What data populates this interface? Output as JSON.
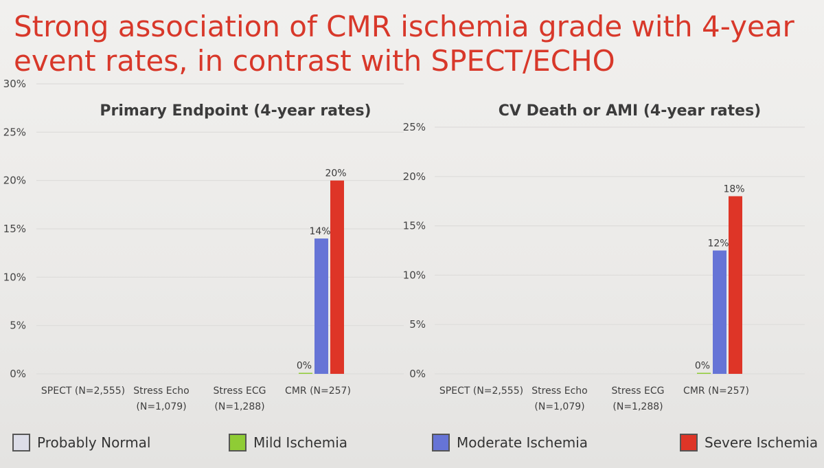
{
  "title": {
    "line1": "Strong association of CMR ischemia grade with 4-year",
    "line2": "event rates, in contrast with SPECT/ECHO"
  },
  "colors": {
    "title": "#d8382a",
    "probably_normal": "#dcdde8",
    "mild": "#8fcc35",
    "moderate": "#6674d6",
    "severe": "#de3527"
  },
  "legend": [
    {
      "key": "probably_normal",
      "label": "Probably Normal"
    },
    {
      "key": "mild",
      "label": "Mild Ischemia"
    },
    {
      "key": "moderate",
      "label": "Moderate Ischemia"
    },
    {
      "key": "severe",
      "label": "Severe Ischemia"
    }
  ],
  "chart_data": [
    {
      "type": "bar",
      "title": "Primary Endpoint (4-year rates)",
      "ylim": [
        0,
        30
      ],
      "yticks": [
        "0%",
        "5%",
        "10%",
        "15%",
        "20%",
        "25%",
        "30%"
      ],
      "categories": [
        [
          "SPECT (N=2,555)"
        ],
        [
          "Stress Echo",
          "(N=1,079)"
        ],
        [
          "Stress ECG",
          "(N=1,288)"
        ],
        [
          "CMR (N=257)"
        ]
      ],
      "series": [
        {
          "name": "Mild Ischemia",
          "key": "mild",
          "values": [
            null,
            null,
            null,
            0
          ],
          "labels": [
            "",
            "",
            "",
            "0%"
          ]
        },
        {
          "name": "Moderate Ischemia",
          "key": "moderate",
          "values": [
            null,
            null,
            null,
            14
          ],
          "labels": [
            "",
            "",
            "",
            "14%"
          ]
        },
        {
          "name": "Severe Ischemia",
          "key": "severe",
          "values": [
            null,
            null,
            null,
            20
          ],
          "labels": [
            "",
            "",
            "",
            "20%"
          ]
        }
      ]
    },
    {
      "type": "bar",
      "title": "CV Death or AMI (4-year rates)",
      "ylim": [
        0,
        25
      ],
      "yticks": [
        "0%",
        "5%",
        "10%",
        "15%",
        "20%",
        "25%"
      ],
      "categories": [
        [
          "SPECT (N=2,555)"
        ],
        [
          "Stress Echo",
          "(N=1,079)"
        ],
        [
          "Stress ECG",
          "(N=1,288)"
        ],
        [
          "CMR (N=257)"
        ]
      ],
      "series": [
        {
          "name": "Mild Ischemia",
          "key": "mild",
          "values": [
            null,
            null,
            null,
            0
          ],
          "labels": [
            "",
            "",
            "",
            "0%"
          ]
        },
        {
          "name": "Moderate Ischemia",
          "key": "moderate",
          "values": [
            null,
            null,
            null,
            12.5
          ],
          "labels": [
            "",
            "",
            "",
            "12%"
          ]
        },
        {
          "name": "Severe Ischemia",
          "key": "severe",
          "values": [
            null,
            null,
            null,
            18
          ],
          "labels": [
            "",
            "",
            "",
            "18%"
          ]
        }
      ]
    }
  ]
}
